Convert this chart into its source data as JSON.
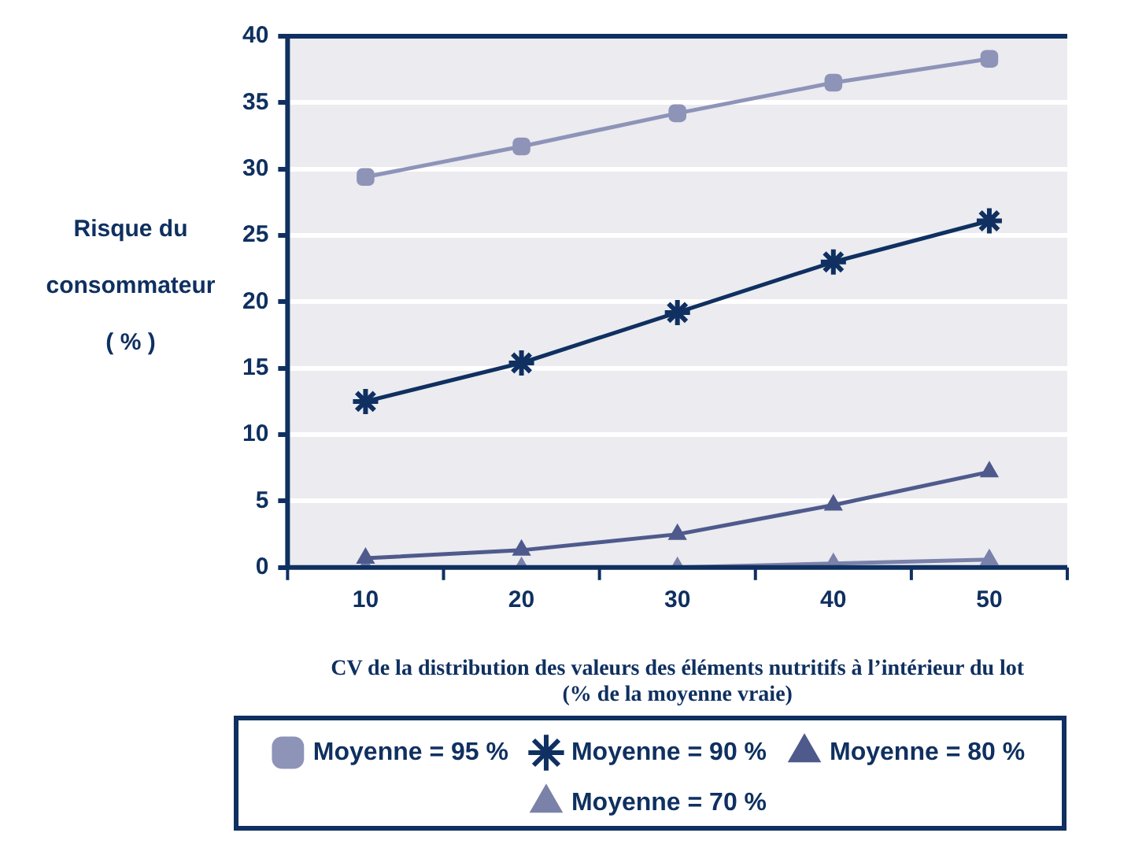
{
  "chart_data": {
    "type": "line",
    "ylabel": "Risque du\nconsommateur\n( % )",
    "xlabel": "CV de la distribution des valeurs des éléments nutritifs à l’intérieur du lot\n(% de la moyenne vraie)",
    "categories": [
      "10",
      "20",
      "30",
      "40",
      "50"
    ],
    "ylim": [
      0,
      40
    ],
    "yticks": [
      0,
      5,
      10,
      15,
      20,
      25,
      30,
      35,
      40
    ],
    "grid": "y",
    "legend": "bottom",
    "series": [
      {
        "name": "Moyenne = 95 %",
        "color": "#8e94b8",
        "marker": "square",
        "values": [
          29.4,
          31.7,
          34.2,
          36.5,
          38.3
        ]
      },
      {
        "name": "Moyenne = 90 %",
        "color": "#0f3060",
        "marker": "cross",
        "values": [
          12.5,
          15.4,
          19.2,
          23.0,
          26.1
        ]
      },
      {
        "name": "Moyenne = 80 %",
        "color": "#4f5a8c",
        "marker": "triangle",
        "values": [
          0.7,
          1.3,
          2.5,
          4.7,
          7.2
        ]
      },
      {
        "name": "Moyenne = 70 %",
        "color": "#7a82aa",
        "marker": "triangle",
        "values": [
          0,
          0,
          0,
          0.3,
          0.6
        ]
      }
    ]
  }
}
